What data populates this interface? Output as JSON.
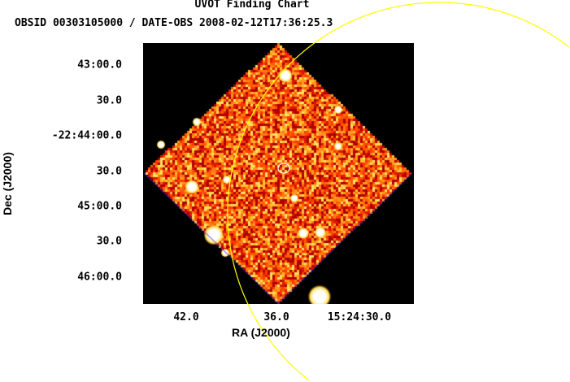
{
  "title": "UVOT Finding Chart",
  "subtitle": "OBSID 00303105000 / DATE-OBS 2008-02-12T17:36:25.3",
  "axes": {
    "xlabel": "RA (J2000)",
    "ylabel": "Dec (J2000)",
    "ra_ticks": [
      "42.0",
      "36.0",
      "15:24:30.0"
    ],
    "dec_ticks": [
      "43:00.0",
      "30.0",
      "-22:44:00.0",
      "30.0",
      "45:00.0",
      "30.0",
      "46:00.0"
    ]
  },
  "colors": {
    "image_background": "#000000",
    "field_orange": "#ff4a00",
    "field_red": "#c20000",
    "field_yellow": "#ffd200",
    "field_edge": "#5020d0",
    "star": "#ffffff",
    "overlay_circle": "#ffff00",
    "target_marker": "#ffffff"
  }
}
